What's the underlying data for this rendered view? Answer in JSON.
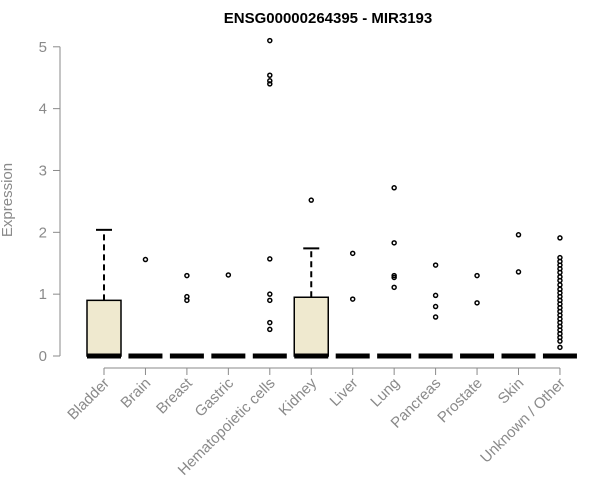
{
  "chart_data": {
    "type": "boxplot",
    "title": "ENSG00000264395 - MIR3193",
    "ylabel": "Expression",
    "xlabel": "",
    "ylim": [
      0,
      5.1
    ],
    "y_ticks": [
      0,
      1,
      2,
      3,
      4,
      5
    ],
    "y_tick_labels": [
      "0",
      "1",
      "2",
      "3",
      "4",
      "5"
    ],
    "grid": false,
    "legend": "none",
    "categories": [
      "Bladder",
      "Brain",
      "Breast",
      "Gastric",
      "Hematopoietic cells",
      "Kidney",
      "Liver",
      "Lung",
      "Pancreas",
      "Prostate",
      "Skin",
      "Unknown / Other"
    ],
    "boxes": [
      {
        "category": "Bladder",
        "min": 0,
        "q1": 0,
        "median": 0,
        "q3": 0.9,
        "max": 2.04,
        "outliers": []
      },
      {
        "category": "Brain",
        "min": 0,
        "q1": 0,
        "median": 0,
        "q3": 0,
        "max": 0,
        "outliers": [
          1.56
        ]
      },
      {
        "category": "Breast",
        "min": 0,
        "q1": 0,
        "median": 0,
        "q3": 0,
        "max": 0,
        "outliers": [
          1.3,
          0.96,
          0.9
        ]
      },
      {
        "category": "Gastric",
        "min": 0,
        "q1": 0,
        "median": 0,
        "q3": 0,
        "max": 0,
        "outliers": [
          1.31
        ]
      },
      {
        "category": "Hematopoietic cells",
        "min": 0,
        "q1": 0,
        "median": 0,
        "q3": 0,
        "max": 0,
        "outliers": [
          5.1,
          4.54,
          4.45,
          4.4,
          1.57,
          1.0,
          0.9,
          0.54,
          0.43
        ]
      },
      {
        "category": "Kidney",
        "min": 0,
        "q1": 0,
        "median": 0,
        "q3": 0.95,
        "max": 1.74,
        "outliers": [
          2.52
        ]
      },
      {
        "category": "Liver",
        "min": 0,
        "q1": 0,
        "median": 0,
        "q3": 0,
        "max": 0,
        "outliers": [
          1.66,
          0.92
        ]
      },
      {
        "category": "Lung",
        "min": 0,
        "q1": 0,
        "median": 0,
        "q3": 0,
        "max": 0,
        "outliers": [
          2.72,
          1.83,
          1.3,
          1.27,
          1.11
        ]
      },
      {
        "category": "Pancreas",
        "min": 0,
        "q1": 0,
        "median": 0,
        "q3": 0,
        "max": 0,
        "outliers": [
          1.47,
          0.98,
          0.8,
          0.63
        ]
      },
      {
        "category": "Prostate",
        "min": 0,
        "q1": 0,
        "median": 0,
        "q3": 0,
        "max": 0,
        "outliers": [
          1.3,
          0.86
        ]
      },
      {
        "category": "Skin",
        "min": 0,
        "q1": 0,
        "median": 0,
        "q3": 0,
        "max": 0,
        "outliers": [
          1.96,
          1.36
        ]
      },
      {
        "category": "Unknown / Other",
        "min": 0,
        "q1": 0,
        "median": 0,
        "q3": 0,
        "max": 0,
        "outliers": [
          1.91,
          1.59,
          1.53,
          1.47,
          1.41,
          1.35,
          1.28,
          1.22,
          1.15,
          1.08,
          1.02,
          0.96,
          0.9,
          0.84,
          0.78,
          0.72,
          0.66,
          0.6,
          0.54,
          0.48,
          0.42,
          0.36,
          0.3,
          0.24,
          0.14
        ]
      }
    ],
    "colors": {
      "box_fill": "#efe9cf",
      "stroke": "#000000",
      "axis": "#8a8a8a",
      "text": "#8a8a8a",
      "title": "#000000"
    }
  }
}
